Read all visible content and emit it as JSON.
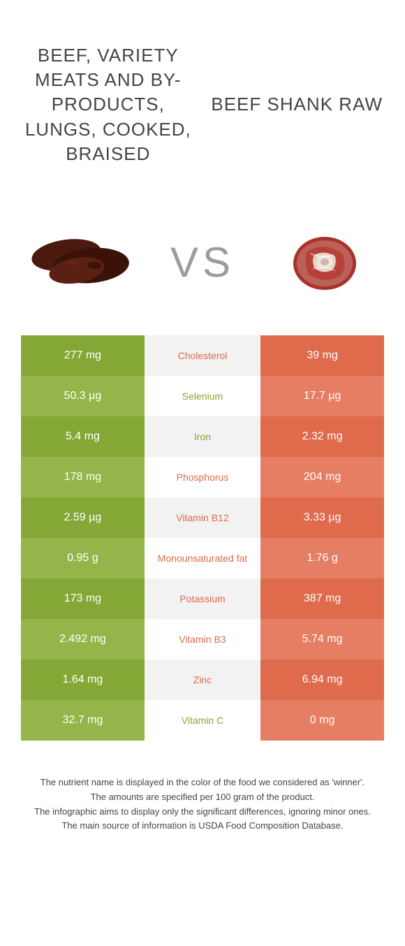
{
  "header": {
    "left_title": "BEEF, VARIETY MEATS AND BY-PRODUCTS, LUNGS, COOKED, BRAISED",
    "right_title": "BEEF SHANK RAW",
    "vs_label": "VS"
  },
  "colors": {
    "left_primary": "#85a736",
    "left_alt": "#95b54a",
    "right_primary": "#e06a4c",
    "right_alt": "#e57e63",
    "mid_odd": "#f2f2f2",
    "mid_even": "#ffffff"
  },
  "table": {
    "rows": [
      {
        "nutrient": "Cholesterol",
        "left": "277 mg",
        "right": "39 mg",
        "winner": "right"
      },
      {
        "nutrient": "Selenium",
        "left": "50.3 µg",
        "right": "17.7 µg",
        "winner": "left"
      },
      {
        "nutrient": "Iron",
        "left": "5.4 mg",
        "right": "2.32 mg",
        "winner": "left"
      },
      {
        "nutrient": "Phosphorus",
        "left": "178 mg",
        "right": "204 mg",
        "winner": "right"
      },
      {
        "nutrient": "Vitamin B12",
        "left": "2.59 µg",
        "right": "3.33 µg",
        "winner": "right"
      },
      {
        "nutrient": "Monounsaturated fat",
        "left": "0.95 g",
        "right": "1.76 g",
        "winner": "right"
      },
      {
        "nutrient": "Potassium",
        "left": "173 mg",
        "right": "387 mg",
        "winner": "right"
      },
      {
        "nutrient": "Vitamin B3",
        "left": "2.492 mg",
        "right": "5.74 mg",
        "winner": "right"
      },
      {
        "nutrient": "Zinc",
        "left": "1.64 mg",
        "right": "6.94 mg",
        "winner": "right"
      },
      {
        "nutrient": "Vitamin C",
        "left": "32.7 mg",
        "right": "0 mg",
        "winner": "left"
      }
    ]
  },
  "footer": {
    "line1": "The nutrient name is displayed in the color of the food we considered as 'winner'.",
    "line2": "The amounts are specified per 100 gram of the product.",
    "line3": "The infographic aims to display only the significant differences, ignoring minor ones.",
    "line4": "The main source of information is USDA Food Composition Database."
  }
}
